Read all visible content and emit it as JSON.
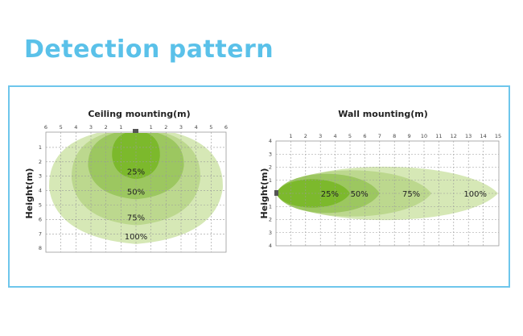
{
  "page": {
    "title": "Detection pattern"
  },
  "colors": {
    "title": "#5ac1e9",
    "frame": "#6ec6ec",
    "zone_100": "#d6e8b6",
    "zone_75": "#bcd88e",
    "zone_50": "#9cc760",
    "zone_25": "#7cb92c",
    "sensor": "#555555",
    "grid": "#9a9a9a"
  },
  "ceiling": {
    "title": "Ceiling mounting(m)",
    "y_axis_label": "Height(m)",
    "x_ticks": [
      "6",
      "5",
      "4",
      "3",
      "2",
      "1",
      "",
      "1",
      "2",
      "3",
      "4",
      "5",
      "6"
    ],
    "y_ticks": [
      "1",
      "2",
      "3",
      "4",
      "5",
      "6",
      "7",
      "8"
    ],
    "zones": [
      {
        "label": "100%",
        "half_width_m": 5.8,
        "depth_m": 7.7
      },
      {
        "label": "75%",
        "half_width_m": 4.3,
        "depth_m": 6.4
      },
      {
        "label": "50%",
        "half_width_m": 3.2,
        "depth_m": 4.6
      },
      {
        "label": "25%",
        "half_width_m": 1.6,
        "depth_m": 3.2
      }
    ]
  },
  "wall": {
    "title": "Wall mounting(m)",
    "y_axis_label": "Height(m)",
    "x_ticks": [
      "1",
      "2",
      "3",
      "4",
      "5",
      "6",
      "7",
      "8",
      "9",
      "10",
      "11",
      "12",
      "13",
      "14",
      "15"
    ],
    "y_ticks": [
      "4",
      "3",
      "2",
      "1",
      "",
      "1",
      "2",
      "3",
      "4"
    ],
    "zones": [
      {
        "label": "100%",
        "reach_m": 15,
        "half_height_m": 3.0
      },
      {
        "label": "75%",
        "reach_m": 10.5,
        "half_height_m": 2.6
      },
      {
        "label": "50%",
        "reach_m": 7,
        "half_height_m": 2.2
      },
      {
        "label": "25%",
        "reach_m": 5,
        "half_height_m": 1.6
      }
    ]
  }
}
